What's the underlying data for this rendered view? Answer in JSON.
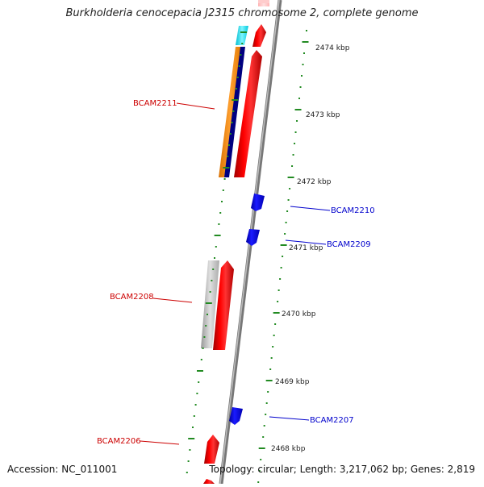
{
  "title": "Burkholderia cenocepacia J2315 chromosome 2, complete genome",
  "footer": {
    "accession": "Accession: NC_011001",
    "summary": "Topology: circular; Length: 3,217,062 bp; Genes: 2,819"
  },
  "scale_labels": [
    "2474 kbp",
    "2473 kbp",
    "2472 kbp",
    "2471 kbp",
    "2470 kbp",
    "2469 kbp",
    "2468 kbp"
  ],
  "genes": {
    "forward": [
      "BCAM2211",
      "BCAM2208",
      "BCAM2206"
    ],
    "reverse": [
      "BCAM2210",
      "BCAM2209",
      "BCAM2207"
    ]
  },
  "colors": {
    "forward_gene": "#ff0000",
    "reverse_gene": "#0000ff",
    "forward_label": "#cc0000",
    "reverse_label": "#0000cc",
    "backbone": "#888888",
    "tick": "#228b22",
    "orange_feature": "#ff8c00",
    "navy_feature": "#000080",
    "cyan_feature": "#00e5ee",
    "grey_feature": "#bbbbbb"
  }
}
